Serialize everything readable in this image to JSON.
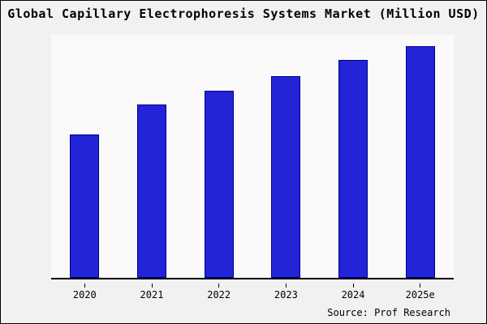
{
  "chart_data": {
    "type": "bar",
    "title": "Global Capillary Electrophoresis Systems Market (Million USD)",
    "categories": [
      "2020",
      "2021",
      "2022",
      "2023",
      "2024",
      "2025e"
    ],
    "values": [
      62,
      75,
      81,
      87,
      94,
      100
    ],
    "xlabel": "",
    "ylabel": "",
    "ylim": [
      0,
      105
    ],
    "grid": false,
    "legend_position": "none",
    "value_note": "no y-axis tick labels shown; values estimated relative to tallest bar = 100",
    "bar_color": "#2323d7",
    "bar_edge_color": "#00008b"
  },
  "source": "Source: Prof Research"
}
